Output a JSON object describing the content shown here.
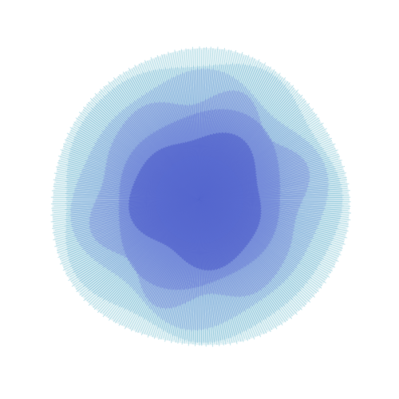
{
  "artwork": {
    "kind": "radial line burst",
    "background": "#ffffff",
    "layers": [
      {
        "name": "outer-ring",
        "color": "#9fd3df",
        "opacity": 0.55,
        "radius": 1.0,
        "wobble": 0.02,
        "lobes": 3
      },
      {
        "name": "ring-2",
        "color": "#8ec5dc",
        "opacity": 0.5,
        "radius": 0.93,
        "wobble": 0.035,
        "lobes": 5
      },
      {
        "name": "ring-3",
        "color": "#86a9de",
        "opacity": 0.5,
        "radius": 0.82,
        "wobble": 0.06,
        "lobes": 4
      },
      {
        "name": "ring-4",
        "color": "#7d93dc",
        "opacity": 0.55,
        "radius": 0.7,
        "wobble": 0.075,
        "lobes": 6
      },
      {
        "name": "ring-5",
        "color": "#6f83d8",
        "opacity": 0.6,
        "radius": 0.58,
        "wobble": 0.085,
        "lobes": 2
      },
      {
        "name": "core",
        "color": "#5566cd",
        "opacity": 0.7,
        "radius": 0.44,
        "wobble": 0.09,
        "lobes": 3
      }
    ],
    "accent_color": "#5a6cd2"
  }
}
